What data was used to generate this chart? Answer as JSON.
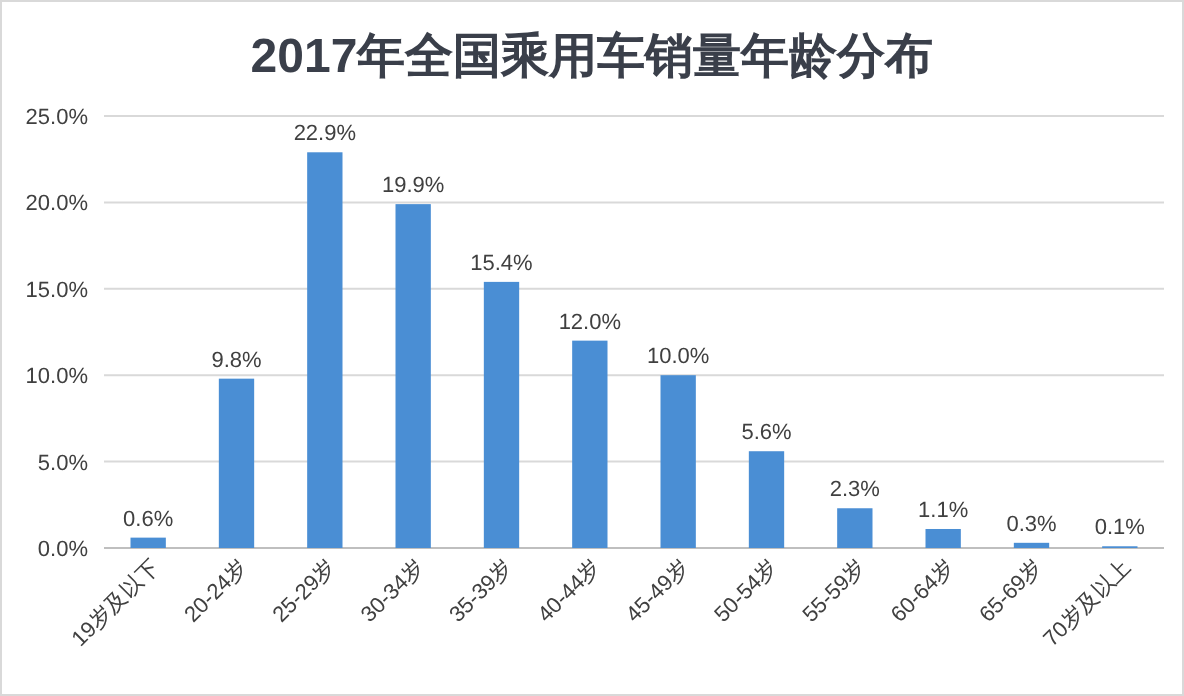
{
  "chart_data": {
    "type": "bar",
    "title": "2017年全国乘用车销量年龄分布",
    "categories": [
      "19岁及以下",
      "20-24岁",
      "25-29岁",
      "30-34岁",
      "35-39岁",
      "40-44岁",
      "45-49岁",
      "50-54岁",
      "55-59岁",
      "60-64岁",
      "65-69岁",
      "70岁及以上"
    ],
    "values": [
      0.6,
      9.8,
      22.9,
      19.9,
      15.4,
      12.0,
      10.0,
      5.6,
      2.3,
      1.1,
      0.3,
      0.1
    ],
    "value_labels": [
      "0.6%",
      "9.8%",
      "22.9%",
      "19.9%",
      "15.4%",
      "12.0%",
      "10.0%",
      "5.6%",
      "2.3%",
      "1.1%",
      "0.3%",
      "0.1%"
    ],
    "color": "#4a8ed4",
    "ylim": [
      0,
      25
    ],
    "yticks": [
      {
        "value": 0,
        "label": "0.0%"
      },
      {
        "value": 5,
        "label": "5.0%"
      },
      {
        "value": 10,
        "label": "10.0%"
      },
      {
        "value": 15,
        "label": "15.0%"
      },
      {
        "value": 20,
        "label": "20.0%"
      },
      {
        "value": 25,
        "label": "25.0%"
      }
    ],
    "grid": "y"
  }
}
